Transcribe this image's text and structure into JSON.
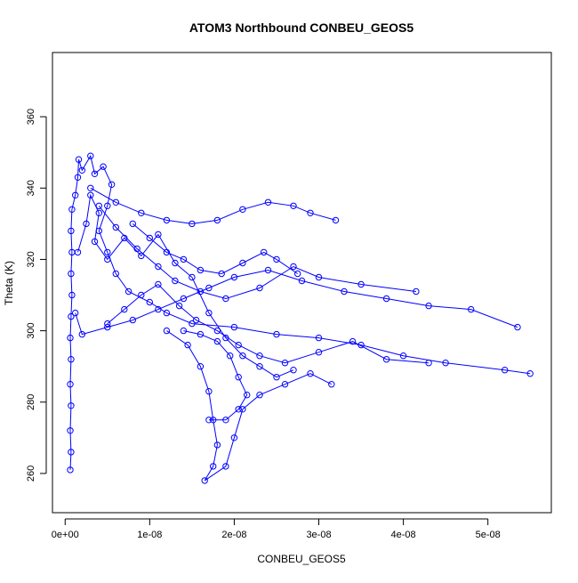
{
  "chart_data": {
    "type": "scatter",
    "title": "ATOM3 Northbound CONBEU_GEOS5",
    "xlabel": "CONBEU_GEOS5",
    "ylabel": "Theta (K)",
    "xlim": [
      -1.5e-09,
      5.75e-08
    ],
    "ylim": [
      249,
      378
    ],
    "x_ticks": [
      0,
      1e-08,
      2e-08,
      3e-08,
      4e-08,
      5e-08
    ],
    "x_tick_labels": [
      "0e+00",
      "1e-08",
      "2e-08",
      "3e-08",
      "4e-08",
      "5e-08"
    ],
    "y_ticks": [
      260,
      280,
      300,
      320,
      340,
      360
    ],
    "y_tick_labels": [
      "260",
      "280",
      "300",
      "320",
      "340",
      "360"
    ],
    "grid": false,
    "legend": "none",
    "marker": "open-circle",
    "connected": true,
    "color": "#0000ff",
    "series": [
      {
        "values": [
          {
            "x": 6e-10,
            "y": 261
          },
          {
            "x": 7e-10,
            "y": 266
          },
          {
            "x": 6e-10,
            "y": 272
          },
          {
            "x": 7e-10,
            "y": 279
          },
          {
            "x": 6e-10,
            "y": 285
          },
          {
            "x": 7e-10,
            "y": 292
          },
          {
            "x": 6e-10,
            "y": 298
          },
          {
            "x": 7e-10,
            "y": 304
          },
          {
            "x": 8e-10,
            "y": 310
          },
          {
            "x": 7e-10,
            "y": 316
          },
          {
            "x": 8e-10,
            "y": 322
          },
          {
            "x": 7e-10,
            "y": 328
          },
          {
            "x": 8e-10,
            "y": 334
          },
          {
            "x": 1.2e-09,
            "y": 338
          },
          {
            "x": 1.5e-09,
            "y": 343
          },
          {
            "x": 1.6e-09,
            "y": 348
          },
          {
            "x": 2e-09,
            "y": 345
          },
          {
            "x": 3e-09,
            "y": 349
          },
          {
            "x": 3.5e-09,
            "y": 344
          },
          {
            "x": 4.5e-09,
            "y": 346
          },
          {
            "x": 5.5e-09,
            "y": 341
          },
          {
            "x": 5e-09,
            "y": 335
          },
          {
            "x": 4e-09,
            "y": 328
          },
          {
            "x": 5e-09,
            "y": 322
          },
          {
            "x": 6e-09,
            "y": 316
          },
          {
            "x": 7.5e-09,
            "y": 311
          },
          {
            "x": 1e-08,
            "y": 308
          },
          {
            "x": 1.2e-08,
            "y": 305
          },
          {
            "x": 1.5e-08,
            "y": 302
          },
          {
            "x": 2e-08,
            "y": 301
          },
          {
            "x": 2.5e-08,
            "y": 299
          },
          {
            "x": 3e-08,
            "y": 298
          },
          {
            "x": 3.5e-08,
            "y": 296
          },
          {
            "x": 4e-08,
            "y": 293
          },
          {
            "x": 4.5e-08,
            "y": 291
          },
          {
            "x": 5.2e-08,
            "y": 289
          },
          {
            "x": 5.5e-08,
            "y": 288
          }
        ]
      },
      {
        "values": [
          {
            "x": 1.2e-09,
            "y": 305
          },
          {
            "x": 2e-09,
            "y": 299
          },
          {
            "x": 5e-09,
            "y": 301
          },
          {
            "x": 8e-09,
            "y": 303
          },
          {
            "x": 1.1e-08,
            "y": 306
          },
          {
            "x": 1.4e-08,
            "y": 309
          },
          {
            "x": 1.7e-08,
            "y": 312
          },
          {
            "x": 2e-08,
            "y": 315
          },
          {
            "x": 2.4e-08,
            "y": 317
          },
          {
            "x": 2.8e-08,
            "y": 314
          },
          {
            "x": 3.3e-08,
            "y": 311
          },
          {
            "x": 3.8e-08,
            "y": 309
          },
          {
            "x": 4.3e-08,
            "y": 307
          },
          {
            "x": 4.8e-08,
            "y": 306
          },
          {
            "x": 5.35e-08,
            "y": 301
          }
        ]
      },
      {
        "values": [
          {
            "x": 3e-09,
            "y": 340
          },
          {
            "x": 6e-09,
            "y": 336
          },
          {
            "x": 9e-09,
            "y": 333
          },
          {
            "x": 1.2e-08,
            "y": 331
          },
          {
            "x": 1.5e-08,
            "y": 330
          },
          {
            "x": 1.8e-08,
            "y": 331
          },
          {
            "x": 2.1e-08,
            "y": 334
          },
          {
            "x": 2.4e-08,
            "y": 336
          },
          {
            "x": 2.7e-08,
            "y": 335
          },
          {
            "x": 2.9e-08,
            "y": 333
          },
          {
            "x": 3.2e-08,
            "y": 331
          }
        ]
      },
      {
        "values": [
          {
            "x": 1.2e-08,
            "y": 300
          },
          {
            "x": 1.45e-08,
            "y": 296
          },
          {
            "x": 1.6e-08,
            "y": 290
          },
          {
            "x": 1.7e-08,
            "y": 283
          },
          {
            "x": 1.75e-08,
            "y": 275
          },
          {
            "x": 1.8e-08,
            "y": 268
          },
          {
            "x": 1.75e-08,
            "y": 262
          },
          {
            "x": 1.65e-08,
            "y": 258
          },
          {
            "x": 1.9e-08,
            "y": 262
          },
          {
            "x": 2e-08,
            "y": 270
          },
          {
            "x": 2.1e-08,
            "y": 278
          },
          {
            "x": 2.3e-08,
            "y": 282
          },
          {
            "x": 2.6e-08,
            "y": 285
          },
          {
            "x": 2.9e-08,
            "y": 288
          },
          {
            "x": 3.15e-08,
            "y": 285
          }
        ]
      },
      {
        "values": [
          {
            "x": 4e-09,
            "y": 335
          },
          {
            "x": 6e-09,
            "y": 329
          },
          {
            "x": 8.5e-09,
            "y": 323
          },
          {
            "x": 1.1e-08,
            "y": 318
          },
          {
            "x": 1.3e-08,
            "y": 314
          },
          {
            "x": 1.6e-08,
            "y": 311
          },
          {
            "x": 1.9e-08,
            "y": 309
          },
          {
            "x": 2.3e-08,
            "y": 312
          },
          {
            "x": 2.7e-08,
            "y": 318
          },
          {
            "x": 3e-08,
            "y": 315
          },
          {
            "x": 3.5e-08,
            "y": 313
          },
          {
            "x": 4.15e-08,
            "y": 311
          }
        ]
      },
      {
        "values": [
          {
            "x": 1.5e-09,
            "y": 322
          },
          {
            "x": 2.5e-09,
            "y": 330
          },
          {
            "x": 3e-09,
            "y": 338
          },
          {
            "x": 4e-09,
            "y": 333
          },
          {
            "x": 3.5e-09,
            "y": 325
          },
          {
            "x": 5e-09,
            "y": 320
          },
          {
            "x": 7e-09,
            "y": 326
          },
          {
            "x": 9e-09,
            "y": 321
          },
          {
            "x": 1.1e-08,
            "y": 327
          },
          {
            "x": 1.3e-08,
            "y": 319
          },
          {
            "x": 1.5e-08,
            "y": 315
          },
          {
            "x": 1.7e-08,
            "y": 305
          },
          {
            "x": 1.9e-08,
            "y": 298
          },
          {
            "x": 2.1e-08,
            "y": 293
          },
          {
            "x": 2.3e-08,
            "y": 290
          },
          {
            "x": 2.5e-08,
            "y": 287
          },
          {
            "x": 2.7e-08,
            "y": 289
          }
        ]
      },
      {
        "values": [
          {
            "x": 5e-09,
            "y": 302
          },
          {
            "x": 7e-09,
            "y": 306
          },
          {
            "x": 9e-09,
            "y": 310
          },
          {
            "x": 1.1e-08,
            "y": 313
          },
          {
            "x": 1.35e-08,
            "y": 307
          },
          {
            "x": 1.55e-08,
            "y": 303
          },
          {
            "x": 1.8e-08,
            "y": 300
          },
          {
            "x": 2.05e-08,
            "y": 296
          },
          {
            "x": 2.3e-08,
            "y": 293
          },
          {
            "x": 2.6e-08,
            "y": 291
          },
          {
            "x": 3e-08,
            "y": 294
          },
          {
            "x": 3.4e-08,
            "y": 297
          },
          {
            "x": 3.8e-08,
            "y": 292
          },
          {
            "x": 4.3e-08,
            "y": 291
          }
        ]
      },
      {
        "values": [
          {
            "x": 8e-09,
            "y": 330
          },
          {
            "x": 1e-08,
            "y": 326
          },
          {
            "x": 1.2e-08,
            "y": 322
          },
          {
            "x": 1.4e-08,
            "y": 320
          },
          {
            "x": 1.6e-08,
            "y": 317
          },
          {
            "x": 1.85e-08,
            "y": 316
          },
          {
            "x": 2.1e-08,
            "y": 319
          },
          {
            "x": 2.35e-08,
            "y": 322
          },
          {
            "x": 2.5e-08,
            "y": 320
          },
          {
            "x": 2.75e-08,
            "y": 316
          }
        ]
      },
      {
        "values": [
          {
            "x": 1.4e-08,
            "y": 300
          },
          {
            "x": 1.6e-08,
            "y": 299
          },
          {
            "x": 1.8e-08,
            "y": 297
          },
          {
            "x": 1.95e-08,
            "y": 293
          },
          {
            "x": 2.05e-08,
            "y": 287
          },
          {
            "x": 2.15e-08,
            "y": 282
          },
          {
            "x": 2.05e-08,
            "y": 278
          },
          {
            "x": 1.9e-08,
            "y": 275
          },
          {
            "x": 1.7e-08,
            "y": 275
          }
        ]
      }
    ]
  }
}
